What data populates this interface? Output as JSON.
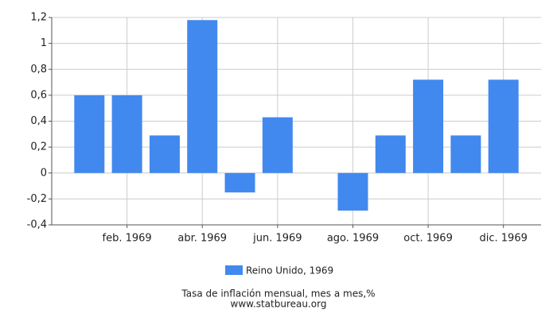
{
  "chart_data": {
    "type": "bar",
    "categories": [
      null,
      "feb. 1969",
      null,
      "abr. 1969",
      null,
      "jun. 1969",
      null,
      "ago. 1969",
      null,
      "oct. 1969",
      null,
      "dic. 1969"
    ],
    "series": [
      {
        "name": "Reino Unido, 1969",
        "color": "#4189ee",
        "values": [
          0.6,
          0.6,
          0.29,
          1.18,
          -0.15,
          0.43,
          0,
          -0.29,
          0.29,
          0.72,
          0.29,
          0.72
        ]
      }
    ],
    "ylim": [
      -0.4,
      1.2
    ],
    "yticks": [
      {
        "value": -0.4,
        "label": "-0,4"
      },
      {
        "value": -0.2,
        "label": "-0,2"
      },
      0,
      {
        "value": 0.2,
        "label": "0,2"
      },
      {
        "value": 0.4,
        "label": "0,4"
      },
      {
        "value": 0.6,
        "label": "0,6"
      },
      {
        "value": 0.8,
        "label": "0,8"
      },
      1,
      {
        "value": 1.2,
        "label": "1,2"
      }
    ],
    "grid": true,
    "footer": [
      "Tasa de inflación mensual, mes a mes,%",
      "www.statbureau.org"
    ]
  }
}
